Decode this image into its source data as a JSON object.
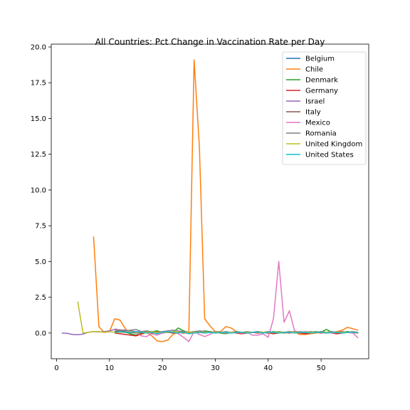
{
  "chart_data": {
    "type": "line",
    "title": "All Countries: Pct Change in Vaccination Rate per Day",
    "xlabel": "",
    "ylabel": "",
    "xlim": [
      -1,
      59
    ],
    "ylim": [
      -1.8,
      20.2
    ],
    "x_ticks": [
      0,
      10,
      20,
      30,
      40,
      50
    ],
    "y_ticks": [
      0.0,
      2.5,
      5.0,
      7.5,
      10.0,
      12.5,
      15.0,
      17.5,
      20.0
    ],
    "y_tick_labels": [
      "0.0",
      "2.5",
      "5.0",
      "7.5",
      "10.0",
      "12.5",
      "15.0",
      "17.5",
      "20.0"
    ],
    "grid": false,
    "legend_position": "upper right",
    "series": [
      {
        "name": "Belgium",
        "color": "#1f77b4",
        "x": [
          11,
          12,
          13,
          14,
          15,
          16,
          17,
          18,
          19,
          20,
          21,
          22,
          23,
          24,
          25,
          26,
          27,
          28,
          29,
          30,
          31,
          32,
          33,
          34,
          35,
          36,
          37,
          38,
          39,
          40,
          41,
          42,
          43,
          44,
          45,
          46,
          47,
          48,
          49,
          50,
          51,
          52,
          53,
          54,
          55,
          56,
          57
        ],
        "y": [
          0.05,
          0.06,
          0.04,
          0.05,
          0.03,
          0.04,
          0.05,
          0.03,
          0.04,
          0.02,
          0.05,
          0.04,
          0.06,
          0.03,
          0.05,
          0.04,
          0.05,
          0.03,
          0.04,
          0.05,
          0.03,
          0.04,
          0.05,
          0.04,
          0.03,
          0.05,
          0.04,
          0.03,
          0.05,
          0.04,
          0.03,
          0.04,
          0.05,
          0.04,
          0.03,
          0.05,
          0.04,
          0.03,
          0.04,
          0.05,
          0.04,
          0.03,
          0.04,
          0.05,
          0.04,
          0.03,
          0.04
        ]
      },
      {
        "name": "Chile",
        "color": "#ff7f0e",
        "x": [
          7,
          8,
          9,
          10,
          11,
          12,
          13,
          14,
          15,
          16,
          17,
          18,
          19,
          20,
          21,
          22,
          23,
          24,
          25,
          26,
          27,
          28,
          29,
          30,
          31,
          32,
          33,
          34,
          35,
          36,
          37,
          38,
          39,
          40,
          41,
          42,
          43,
          44,
          45,
          46,
          47,
          48,
          49,
          50,
          51,
          52,
          53,
          54,
          55,
          56,
          57
        ],
        "y": [
          6.75,
          0.45,
          0.05,
          0.1,
          1.0,
          0.9,
          0.3,
          -0.1,
          -0.2,
          -0.1,
          0.05,
          -0.2,
          -0.55,
          -0.6,
          -0.5,
          -0.1,
          0.05,
          0.0,
          0.0,
          19.1,
          13.0,
          1.0,
          0.5,
          0.1,
          0.1,
          0.45,
          0.35,
          0.1,
          0.05,
          0.0,
          0.05,
          0.0,
          0.05,
          0.0,
          0.05,
          0.0,
          0.05,
          0.1,
          0.05,
          -0.1,
          -0.1,
          -0.05,
          0.0,
          0.05,
          0.0,
          0.05,
          0.1,
          0.2,
          0.4,
          0.3,
          0.2
        ]
      },
      {
        "name": "Denmark",
        "color": "#2ca02c",
        "x": [
          11,
          12,
          13,
          14,
          15,
          16,
          17,
          18,
          19,
          20,
          21,
          22,
          23,
          24,
          25,
          26,
          27,
          28,
          29,
          30,
          31,
          32,
          33,
          34,
          35,
          36,
          37,
          38,
          39,
          40,
          41,
          42,
          43,
          44,
          45,
          46,
          47,
          48,
          49,
          50,
          51,
          52,
          53,
          54,
          55,
          56,
          57
        ],
        "y": [
          0.1,
          0.15,
          0.05,
          -0.05,
          -0.15,
          0.0,
          0.05,
          0.1,
          0.15,
          0.05,
          0.1,
          0.05,
          0.35,
          0.15,
          0.05,
          0.1,
          0.05,
          0.15,
          0.1,
          0.05,
          0.0,
          -0.05,
          0.05,
          0.1,
          0.05,
          0.0,
          0.05,
          0.1,
          0.05,
          0.0,
          0.1,
          0.05,
          0.0,
          0.05,
          0.1,
          0.05,
          0.0,
          0.05,
          0.1,
          0.05,
          0.25,
          0.05,
          0.0,
          0.05,
          0.1,
          0.05,
          0.0
        ]
      },
      {
        "name": "Germany",
        "color": "#d62728",
        "x": [
          11,
          12,
          13,
          14,
          15,
          16,
          17,
          18,
          19,
          20,
          21,
          22,
          23,
          24,
          25,
          26,
          27,
          28,
          29,
          30,
          31,
          32,
          33,
          34,
          35,
          36,
          37,
          38,
          39,
          40,
          41,
          42,
          43,
          44,
          45,
          46,
          47,
          48,
          49,
          50,
          51,
          52,
          53,
          54,
          55,
          56,
          57
        ],
        "y": [
          0.0,
          -0.05,
          -0.1,
          -0.15,
          -0.2,
          -0.05,
          0.05,
          0.0,
          0.05,
          0.0,
          0.05,
          0.0,
          0.05,
          0.0,
          0.05,
          0.0,
          0.05,
          0.0,
          0.05,
          0.0,
          0.05,
          0.0,
          0.05,
          0.0,
          -0.05,
          0.0,
          0.05,
          0.0,
          0.05,
          0.0,
          -0.05,
          0.0,
          0.05,
          0.0,
          0.05,
          0.0,
          -0.05,
          0.0,
          0.05,
          0.0,
          0.05,
          0.0,
          -0.05,
          0.0,
          0.05,
          0.0,
          0.05
        ]
      },
      {
        "name": "Israel",
        "color": "#9467bd",
        "x": [
          1,
          2,
          3,
          4,
          5,
          6,
          7,
          8,
          9,
          10,
          11,
          12,
          13,
          14,
          15,
          16,
          17,
          18,
          19,
          20,
          21,
          22,
          23,
          24,
          25,
          26,
          27,
          28,
          29,
          30,
          31,
          32,
          33,
          34,
          35,
          36,
          37,
          38,
          39,
          40,
          41,
          42,
          43,
          44,
          45,
          46,
          47,
          48,
          49,
          50,
          51,
          52,
          53,
          54,
          55,
          56,
          57
        ],
        "y": [
          0.0,
          -0.02,
          -0.1,
          -0.12,
          -0.08,
          0.05,
          0.1,
          0.08,
          0.1,
          0.15,
          0.25,
          0.22,
          0.2,
          0.15,
          0.1,
          0.08,
          0.05,
          0.05,
          0.05,
          0.05,
          0.05,
          0.05,
          0.05,
          0.05,
          0.05,
          0.05,
          0.05,
          0.05,
          0.05,
          0.05,
          0.05,
          0.05,
          0.05,
          0.05,
          0.05,
          0.05,
          0.05,
          0.05,
          0.05,
          0.05,
          0.05,
          0.05,
          0.05,
          0.05,
          0.05,
          0.05,
          0.05,
          0.05,
          0.05,
          0.05,
          0.05,
          0.05,
          0.05,
          0.05,
          0.05,
          0.05,
          0.05
        ]
      },
      {
        "name": "Italy",
        "color": "#8c564b",
        "x": [
          11,
          12,
          13,
          14,
          15,
          16,
          17,
          18,
          19,
          20,
          21,
          22,
          23,
          24,
          25,
          26,
          27,
          28,
          29,
          30,
          31,
          32,
          33,
          34,
          35,
          36,
          37,
          38,
          39,
          40,
          41,
          42,
          43,
          44,
          45,
          46,
          47,
          48,
          49,
          50,
          51,
          52,
          53,
          54,
          55,
          56,
          57
        ],
        "y": [
          0.1,
          0.12,
          0.1,
          0.05,
          0.0,
          0.05,
          0.1,
          0.05,
          0.1,
          0.05,
          0.1,
          0.05,
          0.05,
          0.1,
          0.05,
          0.05,
          0.05,
          0.1,
          0.05,
          0.05,
          0.05,
          0.05,
          0.05,
          0.05,
          0.05,
          0.05,
          0.05,
          0.05,
          0.05,
          0.05,
          0.05,
          0.05,
          0.05,
          0.05,
          0.05,
          0.05,
          0.05,
          0.05,
          0.05,
          0.05,
          0.05,
          0.05,
          0.05,
          0.05,
          0.05,
          0.05,
          0.05
        ]
      },
      {
        "name": "Mexico",
        "color": "#e377c2",
        "x": [
          11,
          12,
          13,
          14,
          15,
          16,
          17,
          18,
          19,
          20,
          21,
          22,
          23,
          24,
          25,
          26,
          27,
          28,
          29,
          30,
          31,
          32,
          33,
          34,
          35,
          36,
          37,
          38,
          39,
          40,
          41,
          42,
          43,
          44,
          45,
          46,
          47,
          48,
          49,
          50,
          51,
          52,
          53,
          54,
          55,
          56,
          57
        ],
        "y": [
          0.3,
          0.2,
          0.15,
          0.1,
          0.05,
          -0.2,
          -0.25,
          -0.05,
          -0.15,
          0.0,
          0.05,
          0.1,
          -0.05,
          -0.3,
          -0.6,
          0.1,
          -0.1,
          -0.25,
          -0.1,
          0.1,
          0.05,
          0.0,
          0.05,
          0.1,
          0.0,
          0.05,
          -0.15,
          -0.15,
          -0.05,
          -0.3,
          1.0,
          5.0,
          0.75,
          1.55,
          0.15,
          0.05,
          0.1,
          0.05,
          0.05,
          0.1,
          0.05,
          0.0,
          0.05,
          0.1,
          0.05,
          0.0,
          -0.35
        ]
      },
      {
        "name": "Romania",
        "color": "#7f7f7f",
        "x": [
          11,
          12,
          13,
          14,
          15,
          16,
          17,
          18,
          19,
          20,
          21,
          22,
          23,
          24,
          25,
          26,
          27,
          28,
          29,
          30,
          31,
          32,
          33,
          34,
          35,
          36,
          37,
          38,
          39,
          40,
          41,
          42,
          43,
          44,
          45,
          46,
          47,
          48,
          49,
          50,
          51,
          52,
          53,
          54,
          55,
          56,
          57
        ],
        "y": [
          0.2,
          0.2,
          0.15,
          0.2,
          0.25,
          0.1,
          0.15,
          0.1,
          0.05,
          0.1,
          0.15,
          0.2,
          0.15,
          0.1,
          0.05,
          0.1,
          0.15,
          0.1,
          0.05,
          0.1,
          0.05,
          0.1,
          0.05,
          0.1,
          0.05,
          0.1,
          0.05,
          0.1,
          0.05,
          0.1,
          0.05,
          0.1,
          0.05,
          0.1,
          0.05,
          0.1,
          0.05,
          0.1,
          0.05,
          0.1,
          0.05,
          0.1,
          0.05,
          0.1,
          0.05,
          0.1,
          0.05
        ]
      },
      {
        "name": "United Kingdom",
        "color": "#bcbd22",
        "x": [
          4,
          5,
          6,
          7,
          8,
          9,
          10,
          11,
          12,
          13,
          14,
          15,
          16,
          17,
          18,
          19,
          20,
          21,
          22,
          23,
          24,
          25,
          26,
          27,
          28,
          29,
          30,
          31,
          32,
          33,
          34,
          35,
          36,
          37,
          38,
          39,
          40,
          41,
          42,
          43,
          44,
          45,
          46,
          47,
          48,
          49,
          50,
          51,
          52,
          53,
          54,
          55,
          56,
          57
        ],
        "y": [
          2.2,
          0.0,
          0.05,
          0.1,
          0.1,
          0.05,
          0.1,
          0.05,
          0.05,
          0.05,
          0.1,
          0.05,
          0.05,
          0.05,
          0.1,
          0.05,
          0.05,
          0.05,
          0.1,
          0.05,
          0.05,
          0.05,
          0.05,
          0.05,
          0.05,
          0.05,
          0.05,
          0.05,
          0.05,
          0.05,
          0.05,
          0.05,
          0.05,
          0.05,
          0.05,
          0.05,
          0.05,
          0.05,
          0.05,
          0.05,
          0.05,
          0.05,
          0.05,
          0.05,
          0.05,
          0.05,
          0.05,
          0.05,
          0.05,
          0.05,
          0.05,
          0.05,
          0.05,
          0.05
        ]
      },
      {
        "name": "United States",
        "color": "#17becf",
        "x": [
          11,
          12,
          13,
          14,
          15,
          16,
          17,
          18,
          19,
          20,
          21,
          22,
          23,
          24,
          25,
          26,
          27,
          28,
          29,
          30,
          31,
          32,
          33,
          34,
          35,
          36,
          37,
          38,
          39,
          40,
          41,
          42,
          43,
          44,
          45,
          46,
          47,
          48,
          49,
          50,
          51,
          52,
          53,
          54,
          55,
          56,
          57
        ],
        "y": [
          0.05,
          0.1,
          0.05,
          0.05,
          0.1,
          0.05,
          0.0,
          0.05,
          -0.05,
          0.05,
          0.1,
          0.05,
          0.0,
          0.05,
          -0.05,
          0.0,
          0.05,
          0.0,
          0.05,
          0.0,
          0.05,
          0.05,
          0.0,
          0.05,
          0.05,
          0.0,
          0.05,
          0.05,
          0.0,
          0.05,
          0.05,
          0.0,
          0.05,
          0.05,
          0.0,
          0.05,
          0.05,
          0.0,
          0.05,
          0.05,
          0.0,
          0.05,
          0.05,
          0.0,
          0.05,
          0.05,
          0.05
        ]
      }
    ]
  }
}
